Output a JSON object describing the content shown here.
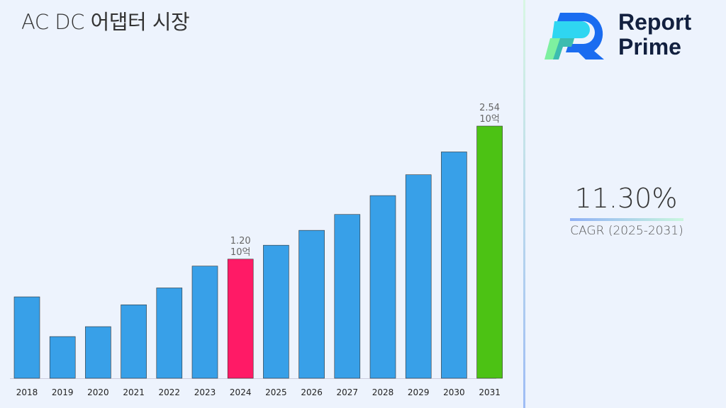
{
  "title": "AC DC 어댑터 시장",
  "brand": {
    "line1": "Report",
    "line2": "Prime"
  },
  "cagr": {
    "value": "11.30%",
    "label": "CAGR (2025-2031)"
  },
  "chart_data": {
    "type": "bar",
    "title": "AC DC 어댑터 시장",
    "categories": [
      "2018",
      "2019",
      "2020",
      "2021",
      "2022",
      "2023",
      "2024",
      "2025",
      "2026",
      "2027",
      "2028",
      "2029",
      "2030",
      "2031"
    ],
    "values": [
      0.82,
      0.42,
      0.52,
      0.74,
      0.91,
      1.13,
      1.2,
      1.34,
      1.49,
      1.65,
      1.84,
      2.05,
      2.28,
      2.54
    ],
    "unit": "10억",
    "data_labels": {
      "2024": [
        "1.20",
        "10억"
      ],
      "2031": [
        "2.54",
        "10억"
      ]
    },
    "colors": {
      "default": "#38a0e8",
      "2024": "#ff1a66",
      "2031": "#4cc214"
    },
    "ylim": [
      0,
      2.54
    ],
    "grid": false
  }
}
